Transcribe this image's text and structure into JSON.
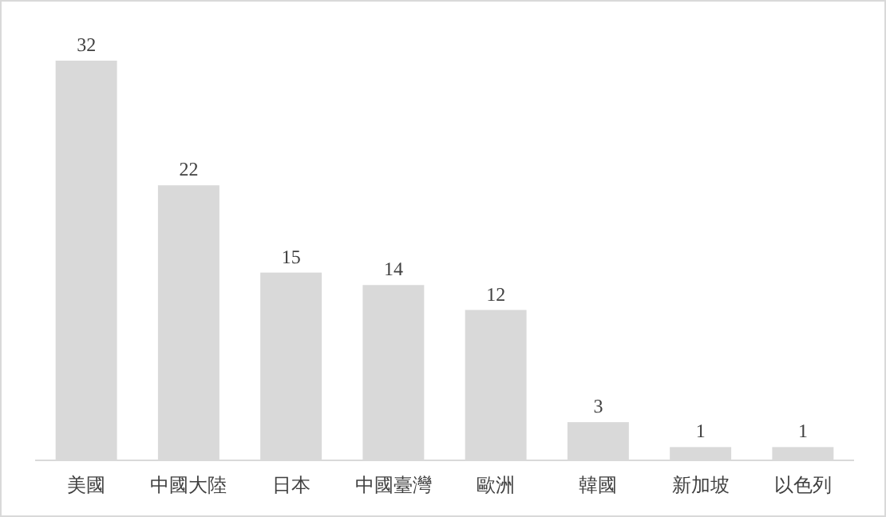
{
  "chart_data": {
    "type": "bar",
    "categories": [
      "美國",
      "中國大陸",
      "日本",
      "中國臺灣",
      "歐洲",
      "韓國",
      "新加坡",
      "以色列"
    ],
    "values": [
      32,
      22,
      15,
      14,
      12,
      3,
      1,
      1
    ],
    "color": "#d9d9d9",
    "data_labels": true
  }
}
